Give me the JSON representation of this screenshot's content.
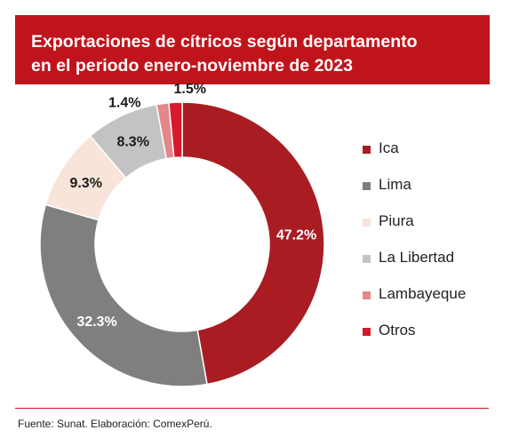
{
  "header": {
    "title_line1": "Exportaciones de cítricos según departamento",
    "title_line2": "en el periodo enero-noviembre de 2023",
    "bg_color": "#c0141c"
  },
  "chart_data": {
    "type": "pie",
    "variant": "donut",
    "categories": [
      "Ica",
      "Lima",
      "Piura",
      "La Libertad",
      "Lambayeque",
      "Otros"
    ],
    "values": [
      47.2,
      32.3,
      9.3,
      8.3,
      1.4,
      1.5
    ],
    "value_labels": [
      "47.2%",
      "32.3%",
      "9.3%",
      "8.3%",
      "1.4%",
      "1.5%"
    ],
    "colors": [
      "#a81c22",
      "#7f7f7f",
      "#f8e4d8",
      "#c3c3c3",
      "#e38789",
      "#d8192b"
    ],
    "label_colors": [
      "#ffffff",
      "#ffffff",
      "#1a1a1a",
      "#1a1a1a",
      "#1a1a1a",
      "#1a1a1a"
    ],
    "legend_position": "right"
  },
  "footer": {
    "source": "Fuente: Sunat. Elaboración: ComexPerú."
  }
}
